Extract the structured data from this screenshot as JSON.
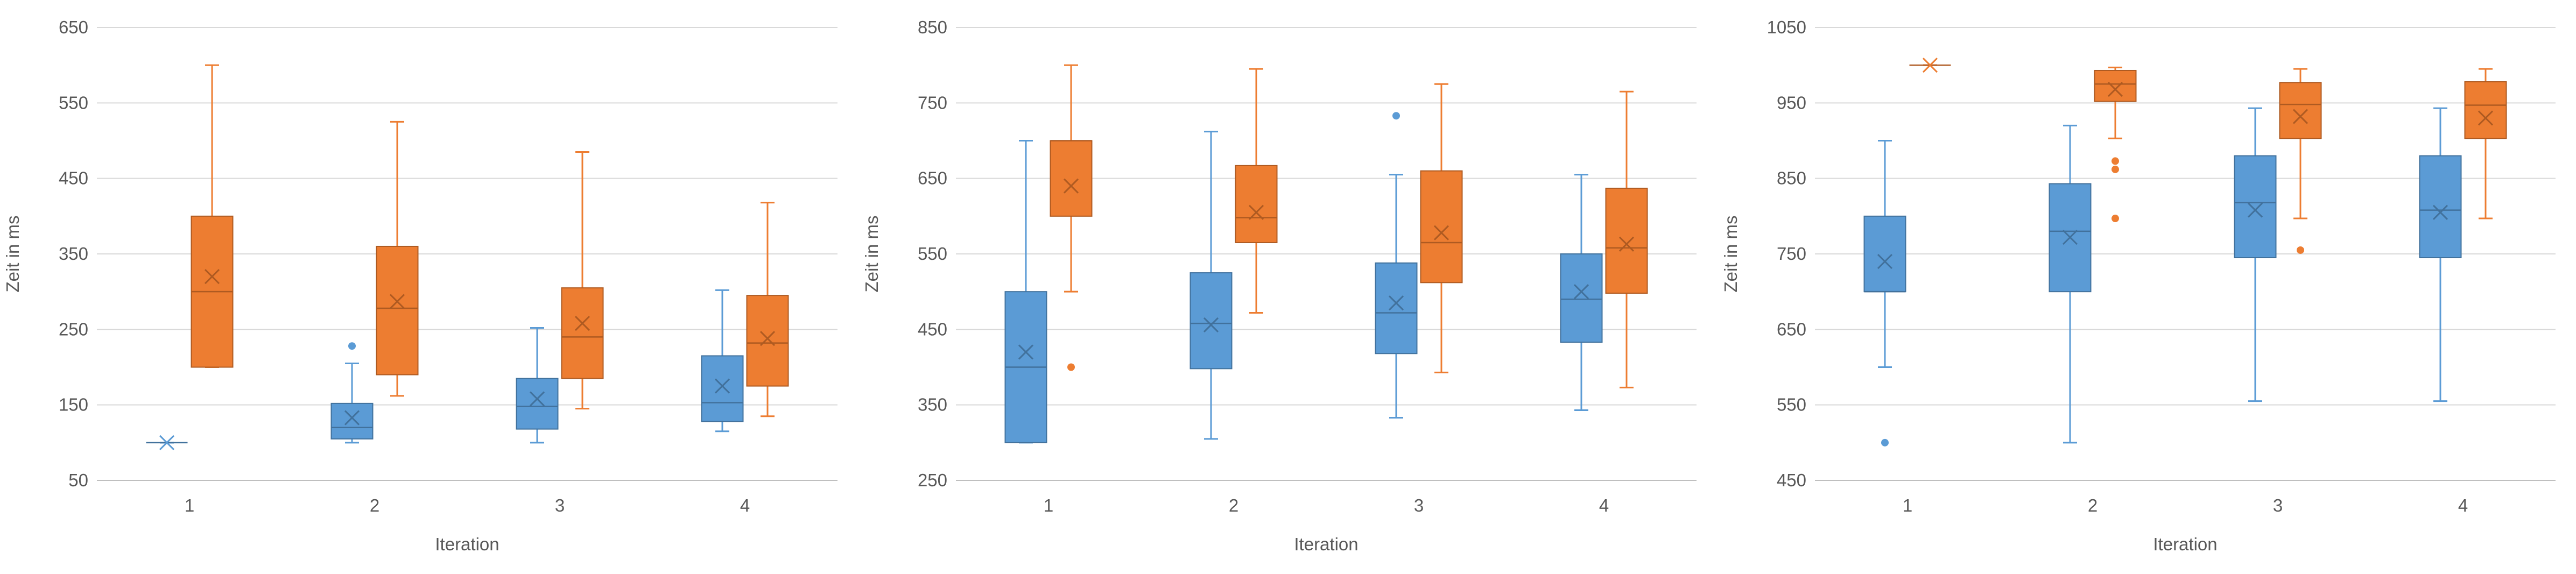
{
  "colors": {
    "blue": "#5B9BD5",
    "blue_edge": "#41719C",
    "orange": "#ED7D31",
    "orange_edge": "#AE5A21",
    "grid": "#D9D9D9",
    "axis": "#BFBFBF",
    "text": "#595959"
  },
  "chart_data": [
    {
      "type": "box",
      "xlabel": "Iteration",
      "ylabel": "Zeit in ms",
      "categories": [
        "1",
        "2",
        "3",
        "4"
      ],
      "ylim": [
        50,
        650
      ],
      "yticks": [
        50,
        150,
        250,
        350,
        450,
        550,
        650
      ],
      "yticklabels": [
        "50",
        "150",
        "250",
        "350",
        "450",
        "550",
        "650"
      ],
      "grid": true,
      "series": [
        {
          "color": "blue",
          "boxes": [
            {
              "min": 100,
              "q1": 100,
              "median": 100,
              "q3": 100,
              "max": 100,
              "mean": 100,
              "outliers": []
            },
            {
              "min": 100,
              "q1": 105,
              "median": 120,
              "q3": 152,
              "max": 205,
              "mean": 133,
              "outliers": [
                228
              ]
            },
            {
              "min": 100,
              "q1": 118,
              "median": 148,
              "q3": 185,
              "max": 252,
              "mean": 158,
              "outliers": []
            },
            {
              "min": 115,
              "q1": 128,
              "median": 153,
              "q3": 215,
              "max": 302,
              "mean": 175,
              "outliers": []
            }
          ]
        },
        {
          "color": "orange",
          "boxes": [
            {
              "min": 200,
              "q1": 200,
              "median": 300,
              "q3": 400,
              "max": 600,
              "mean": 320,
              "outliers": []
            },
            {
              "min": 162,
              "q1": 190,
              "median": 278,
              "q3": 360,
              "max": 525,
              "mean": 287,
              "outliers": []
            },
            {
              "min": 145,
              "q1": 185,
              "median": 240,
              "q3": 305,
              "max": 485,
              "mean": 258,
              "outliers": []
            },
            {
              "min": 135,
              "q1": 175,
              "median": 232,
              "q3": 295,
              "max": 418,
              "mean": 238,
              "outliers": []
            }
          ]
        }
      ]
    },
    {
      "type": "box",
      "xlabel": "Iteration",
      "ylabel": "Zeit in ms",
      "categories": [
        "1",
        "2",
        "3",
        "4"
      ],
      "ylim": [
        250,
        850
      ],
      "yticks": [
        250,
        350,
        450,
        550,
        650,
        750,
        850
      ],
      "yticklabels": [
        "250",
        "350",
        "450",
        "550",
        "650",
        "750",
        "850"
      ],
      "grid": true,
      "series": [
        {
          "color": "blue",
          "boxes": [
            {
              "min": 300,
              "q1": 300,
              "median": 400,
              "q3": 500,
              "max": 700,
              "mean": 420,
              "outliers": []
            },
            {
              "min": 305,
              "q1": 398,
              "median": 458,
              "q3": 525,
              "max": 712,
              "mean": 456,
              "outliers": []
            },
            {
              "min": 333,
              "q1": 418,
              "median": 472,
              "q3": 538,
              "max": 655,
              "mean": 485,
              "outliers": [
                733
              ]
            },
            {
              "min": 343,
              "q1": 433,
              "median": 490,
              "q3": 550,
              "max": 655,
              "mean": 500,
              "outliers": []
            }
          ]
        },
        {
          "color": "orange",
          "boxes": [
            {
              "min": 500,
              "q1": 600,
              "median": 700,
              "q3": 700,
              "max": 800,
              "mean": 640,
              "outliers": [
                400
              ]
            },
            {
              "min": 472,
              "q1": 565,
              "median": 598,
              "q3": 667,
              "max": 795,
              "mean": 605,
              "outliers": []
            },
            {
              "min": 393,
              "q1": 512,
              "median": 565,
              "q3": 660,
              "max": 775,
              "mean": 578,
              "outliers": []
            },
            {
              "min": 373,
              "q1": 498,
              "median": 558,
              "q3": 637,
              "max": 765,
              "mean": 563,
              "outliers": []
            }
          ]
        }
      ]
    },
    {
      "type": "box",
      "xlabel": "Iteration",
      "ylabel": "Zeit in ms",
      "categories": [
        "1",
        "2",
        "3",
        "4"
      ],
      "ylim": [
        450,
        1050
      ],
      "yticks": [
        450,
        550,
        650,
        750,
        850,
        950,
        1050
      ],
      "yticklabels": [
        "450",
        "550",
        "650",
        "750",
        "850",
        "950",
        "1050"
      ],
      "grid": true,
      "series": [
        {
          "color": "blue",
          "boxes": [
            {
              "min": 600,
              "q1": 700,
              "median": 700,
              "q3": 800,
              "max": 900,
              "mean": 740,
              "outliers": [
                500
              ]
            },
            {
              "min": 500,
              "q1": 700,
              "median": 780,
              "q3": 843,
              "max": 920,
              "mean": 772,
              "outliers": []
            },
            {
              "min": 555,
              "q1": 745,
              "median": 818,
              "q3": 880,
              "max": 943,
              "mean": 808,
              "outliers": []
            },
            {
              "min": 555,
              "q1": 745,
              "median": 808,
              "q3": 880,
              "max": 943,
              "mean": 805,
              "outliers": []
            }
          ]
        },
        {
          "color": "orange",
          "boxes": [
            {
              "min": 1000,
              "q1": 1000,
              "median": 1000,
              "q3": 1000,
              "max": 1000,
              "mean": 1000,
              "outliers": []
            },
            {
              "min": 903,
              "q1": 952,
              "median": 975,
              "q3": 993,
              "max": 997,
              "mean": 968,
              "outliers": [
                873,
                862,
                797
              ]
            },
            {
              "min": 797,
              "q1": 903,
              "median": 948,
              "q3": 977,
              "max": 995,
              "mean": 932,
              "outliers": [
                755
              ]
            },
            {
              "min": 797,
              "q1": 903,
              "median": 947,
              "q3": 978,
              "max": 995,
              "mean": 930,
              "outliers": []
            }
          ]
        }
      ]
    }
  ]
}
